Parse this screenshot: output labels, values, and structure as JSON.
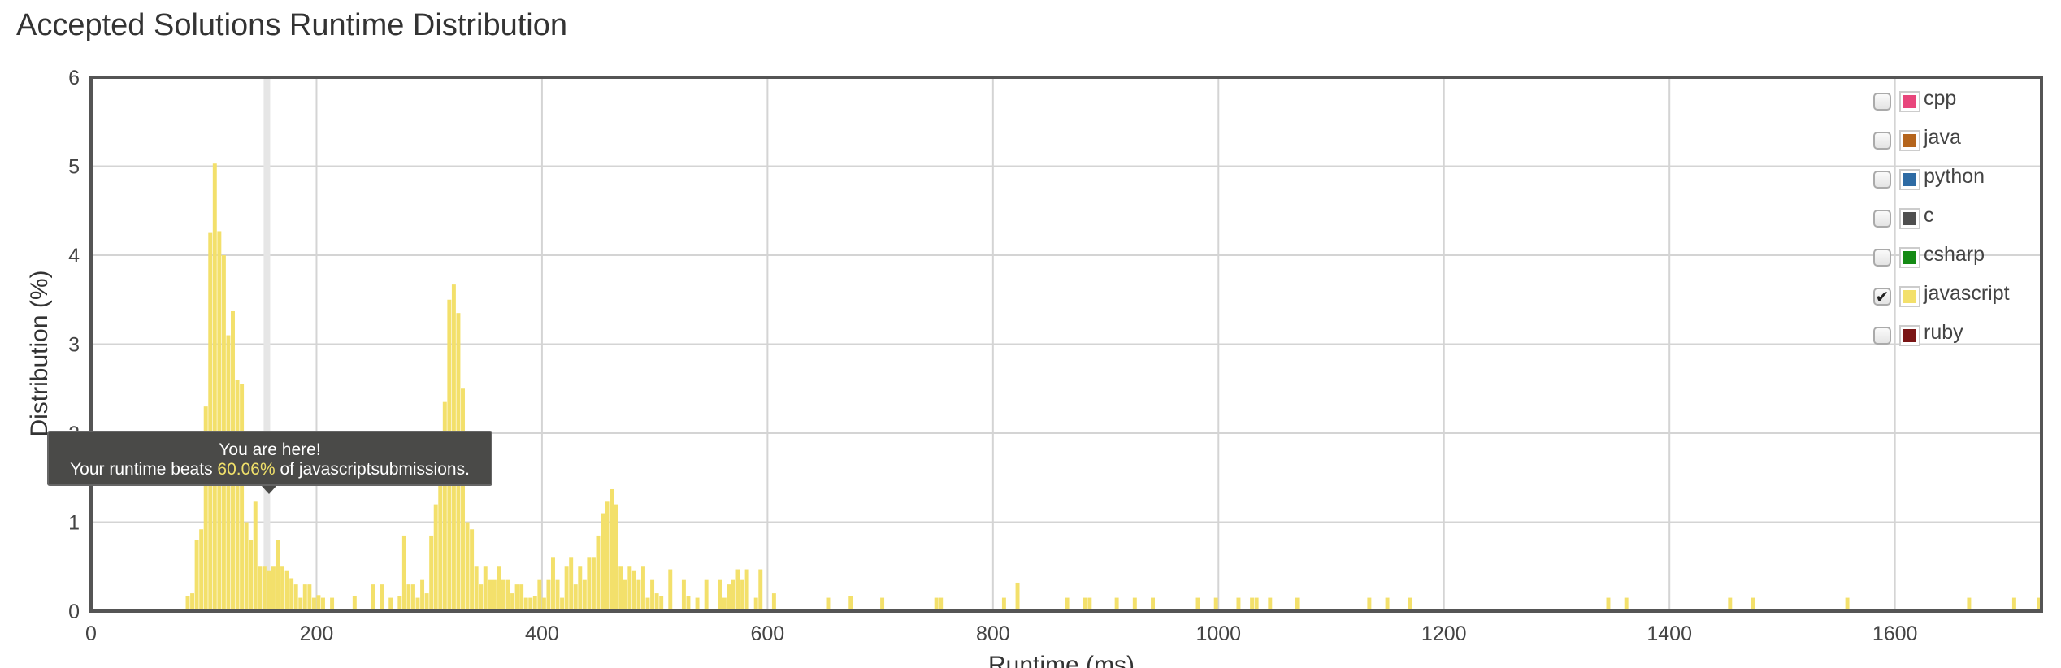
{
  "title": "Accepted Solutions Runtime Distribution",
  "legend": [
    {
      "label": "cpp",
      "color": "#e8467c",
      "checked": false
    },
    {
      "label": "java",
      "color": "#b5651d",
      "checked": false
    },
    {
      "label": "python",
      "color": "#2e6ba4",
      "checked": false
    },
    {
      "label": "c",
      "color": "#4f4f4f",
      "checked": false
    },
    {
      "label": "csharp",
      "color": "#148a14",
      "checked": false
    },
    {
      "label": "javascript",
      "color": "#f3e06b",
      "checked": true
    },
    {
      "label": "ruby",
      "color": "#7a1515",
      "checked": false
    }
  ],
  "tooltip": {
    "line1": "You are here!",
    "line2_prefix": "Your runtime beats ",
    "percent": "60.06%",
    "line2_suffix": " of javascriptsubmissions."
  },
  "chart_data": {
    "type": "bar",
    "title": "Accepted Solutions Runtime Distribution",
    "xlabel": "Runtime (ms)",
    "ylabel": "Distribution (%)",
    "xlim": [
      0,
      1730
    ],
    "ylim": [
      0,
      6
    ],
    "xticks": [
      0,
      200,
      400,
      600,
      800,
      1000,
      1200,
      1400,
      1600
    ],
    "yticks": [
      0,
      1,
      2,
      3,
      4,
      5,
      6
    ],
    "grid": true,
    "legend_position": "top-right",
    "marker_x": 156,
    "bar_width": 4,
    "series": [
      {
        "name": "javascript",
        "color": "#f3e06b",
        "x": [
          84,
          88,
          92,
          96,
          100,
          104,
          108,
          112,
          116,
          120,
          124,
          128,
          132,
          136,
          140,
          144,
          148,
          152,
          156,
          160,
          164,
          168,
          172,
          176,
          180,
          184,
          188,
          192,
          196,
          200,
          204,
          212,
          232,
          248,
          256,
          264,
          272,
          276,
          280,
          284,
          288,
          292,
          296,
          300,
          304,
          308,
          312,
          316,
          320,
          324,
          328,
          332,
          336,
          340,
          344,
          348,
          352,
          356,
          360,
          364,
          368,
          372,
          376,
          380,
          384,
          388,
          392,
          396,
          400,
          404,
          408,
          412,
          416,
          420,
          424,
          428,
          432,
          436,
          440,
          444,
          448,
          452,
          456,
          460,
          464,
          468,
          472,
          476,
          480,
          484,
          488,
          492,
          496,
          500,
          504,
          512,
          524,
          528,
          536,
          544,
          556,
          560,
          564,
          568,
          572,
          576,
          580,
          588,
          592,
          604,
          652,
          672,
          700,
          748,
          752,
          808,
          820,
          864,
          880,
          884,
          908,
          924,
          940,
          980,
          996,
          1016,
          1028,
          1032,
          1044,
          1068,
          1132,
          1148,
          1168,
          1344,
          1360,
          1452,
          1472,
          1556,
          1664,
          1704,
          1726
        ],
        "values": [
          0.17,
          0.2,
          0.8,
          0.92,
          2.3,
          4.25,
          5.03,
          4.27,
          4.0,
          3.1,
          3.37,
          2.6,
          2.55,
          1.0,
          0.8,
          1.23,
          0.5,
          0.5,
          0.45,
          0.5,
          0.8,
          0.5,
          0.45,
          0.37,
          0.3,
          0.15,
          0.3,
          0.3,
          0.15,
          0.18,
          0.15,
          0.15,
          0.17,
          0.3,
          0.3,
          0.15,
          0.17,
          0.85,
          0.3,
          0.3,
          0.15,
          0.35,
          0.2,
          0.85,
          1.2,
          1.95,
          2.35,
          3.5,
          3.67,
          3.35,
          2.5,
          1.0,
          0.92,
          0.5,
          0.3,
          0.5,
          0.35,
          0.35,
          0.5,
          0.35,
          0.35,
          0.2,
          0.3,
          0.3,
          0.15,
          0.15,
          0.17,
          0.35,
          0.15,
          0.35,
          0.6,
          0.35,
          0.15,
          0.5,
          0.6,
          0.3,
          0.5,
          0.35,
          0.6,
          0.6,
          0.85,
          1.1,
          1.23,
          1.37,
          1.2,
          0.5,
          0.35,
          0.5,
          0.45,
          0.35,
          0.5,
          0.15,
          0.35,
          0.2,
          0.17,
          0.47,
          0.35,
          0.17,
          0.15,
          0.35,
          0.35,
          0.15,
          0.3,
          0.35,
          0.47,
          0.35,
          0.47,
          0.15,
          0.47,
          0.2,
          0.15,
          0.17,
          0.15,
          0.15,
          0.15,
          0.15,
          0.32,
          0.15,
          0.15,
          0.15,
          0.15,
          0.15,
          0.15,
          0.15,
          0.15,
          0.15,
          0.15,
          0.15,
          0.15,
          0.15,
          0.15,
          0.15,
          0.15,
          0.15,
          0.15,
          0.15,
          0.15,
          0.15,
          0.15,
          0.15,
          0.15
        ]
      }
    ]
  }
}
